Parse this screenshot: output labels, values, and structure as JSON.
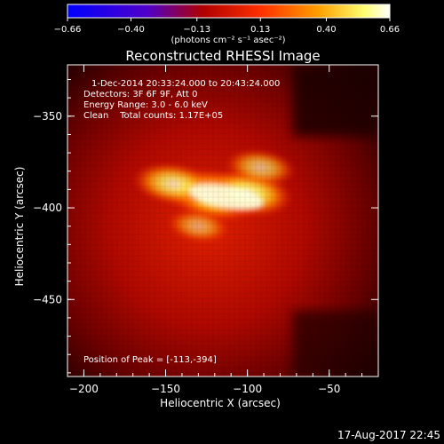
{
  "chart_data": {
    "type": "heatmap",
    "title": "Reconstructed RHESSI Image",
    "xlabel": "Heliocentric X (arcsec)",
    "ylabel": "Heliocentric Y (arcsec)",
    "xlim": [
      -210,
      -20
    ],
    "ylim": [
      -492,
      -322
    ],
    "x_ticks": [
      -200,
      -150,
      -100,
      -50
    ],
    "x_tick_labels": [
      "−200",
      "−150",
      "−100",
      "−50"
    ],
    "y_ticks": [
      -350,
      -400,
      -450
    ],
    "y_tick_labels": [
      "−350",
      "−400",
      "−450"
    ],
    "colorbar": {
      "range": [
        -0.66,
        0.66
      ],
      "ticks": [
        -0.66,
        -0.4,
        -0.13,
        0.13,
        0.4,
        0.66
      ],
      "tick_labels": [
        "−0.66",
        "−0.40",
        "−0.13",
        "0.13",
        "0.40",
        "0.66"
      ],
      "unit_label": "(photons cm⁻² s⁻¹ asec⁻²)",
      "colors": [
        "#0000ff",
        "#8000c0",
        "#ff0000",
        "#ff8000",
        "#ffff80",
        "#ffffff"
      ]
    },
    "annotations": {
      "line1": "1-Dec-2014 20:33:24.000 to 20:43:24.000",
      "line2": "Detectors: 3F 6F 9F, Att 0",
      "line3": "Energy Range: 3.0 - 6.0 keV",
      "line4": "Clean    Total counts: 1.17E+05",
      "peak": "Position of Peak = [-113,-394]"
    },
    "peak_position": [
      -113,
      -394
    ],
    "sources": [
      {
        "x": -120,
        "y": -393,
        "intensity": 0.66
      },
      {
        "x": -100,
        "y": -392,
        "intensity": 0.55
      },
      {
        "x": -145,
        "y": -387,
        "intensity": 0.45
      },
      {
        "x": -92,
        "y": -378,
        "intensity": 0.3
      },
      {
        "x": -130,
        "y": -410,
        "intensity": 0.2
      }
    ]
  },
  "footer": {
    "date": "17-Aug-2017 22:45"
  }
}
